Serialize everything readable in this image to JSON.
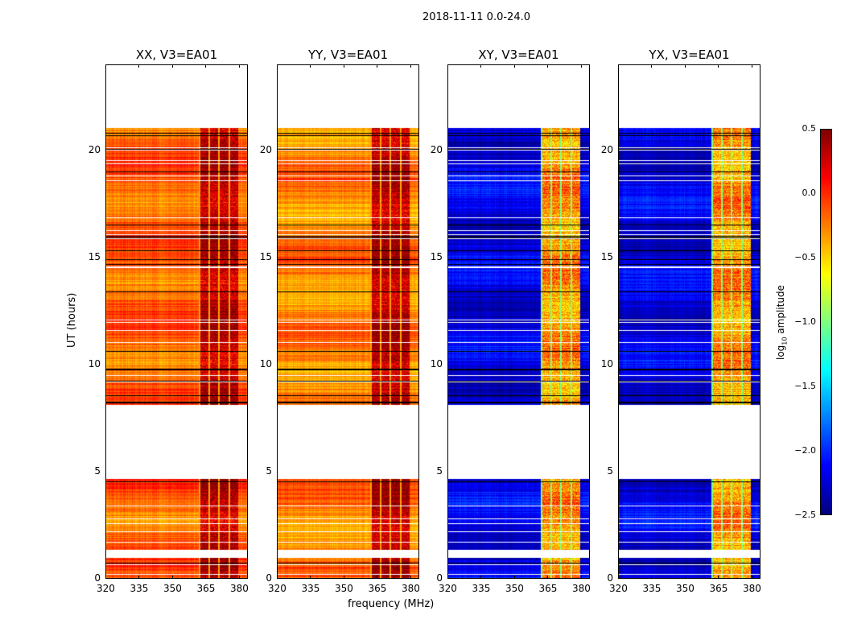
{
  "chart_data": [
    {
      "type": "heatmap",
      "title": "XX, V3=EA01",
      "baseline": -0.15,
      "band_level": 0.25
    },
    {
      "type": "heatmap",
      "title": "YY, V3=EA01",
      "baseline": -0.25,
      "band_level": 0.25
    },
    {
      "type": "heatmap",
      "title": "XY, V3=EA01",
      "baseline": -2.2,
      "band_level": -0.4
    },
    {
      "type": "heatmap",
      "title": "YX, V3=EA01",
      "baseline": -2.2,
      "band_level": -0.4
    }
  ],
  "figure": {
    "suptitle": "2018-11-11 0.0-24.0",
    "xlabel": "frequency (MHz)",
    "ylabel": "UT (hours)",
    "xlim": [
      320,
      384
    ],
    "ylim": [
      0,
      24
    ],
    "xticks": [
      "320",
      "335",
      "350",
      "365",
      "380"
    ],
    "yticks": [
      "0",
      "5",
      "10",
      "15",
      "20"
    ],
    "band_mhz": [
      362,
      380
    ],
    "data_gaps_hours": [
      [
        0.95,
        1.3
      ],
      [
        4.65,
        8.1
      ],
      [
        21.05,
        24
      ]
    ],
    "colormap": "jet"
  },
  "colorbar": {
    "label": "log10 amplitude",
    "label_main": "log",
    "label_sub": "10",
    "label_rest": " amplitude",
    "range": [
      -2.5,
      0.5
    ],
    "ticks": [
      "0.5",
      "0.0",
      "−0.5",
      "−1.0",
      "−1.5",
      "−2.0",
      "−2.5"
    ]
  }
}
